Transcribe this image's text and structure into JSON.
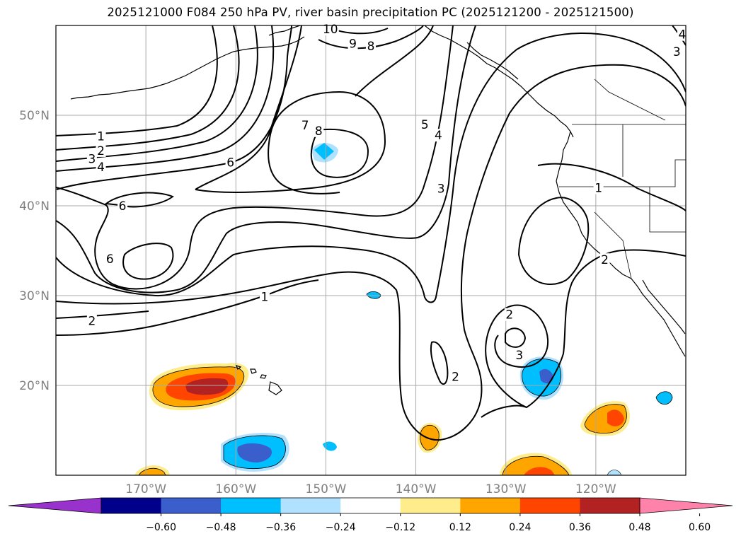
{
  "chart_data": {
    "type": "map-contour",
    "title": "2025121000 F084 250 hPa PV, river basin precipitation PC (2025121200 - 2025121500)",
    "lon_range": [
      -180,
      -110
    ],
    "lat_range": [
      10,
      60
    ],
    "gridlines": true,
    "lat_ticks": [
      {
        "value": 20,
        "label": "20°N"
      },
      {
        "value": 30,
        "label": "30°N"
      },
      {
        "value": 40,
        "label": "40°N"
      },
      {
        "value": 50,
        "label": "50°N"
      }
    ],
    "lon_ticks": [
      {
        "value": -170,
        "label": "170°W"
      },
      {
        "value": -160,
        "label": "160°W"
      },
      {
        "value": -150,
        "label": "150°W"
      },
      {
        "value": -140,
        "label": "140°W"
      },
      {
        "value": -130,
        "label": "130°W"
      },
      {
        "value": -120,
        "label": "120°W"
      }
    ],
    "pv_contour_labels": [
      {
        "text": "1",
        "lon": -175,
        "lat": 47.7
      },
      {
        "text": "2",
        "lon": -175,
        "lat": 46.1
      },
      {
        "text": "3",
        "lon": -176,
        "lat": 45.2
      },
      {
        "text": "4",
        "lon": -175,
        "lat": 44.3
      },
      {
        "text": "6",
        "lon": -160.6,
        "lat": 44.8
      },
      {
        "text": "6",
        "lon": -172.6,
        "lat": 40.0
      },
      {
        "text": "6",
        "lon": -174.0,
        "lat": 34.1
      },
      {
        "text": "7",
        "lon": -152.3,
        "lat": 48.9
      },
      {
        "text": "8",
        "lon": -150.8,
        "lat": 48.3
      },
      {
        "text": "10",
        "lon": -149.5,
        "lat": 59.6
      },
      {
        "text": "9",
        "lon": -147.0,
        "lat": 58.0
      },
      {
        "text": "8",
        "lon": -145.0,
        "lat": 57.7
      },
      {
        "text": "5",
        "lon": -139.0,
        "lat": 49.0
      },
      {
        "text": "4",
        "lon": -137.5,
        "lat": 47.8
      },
      {
        "text": "3",
        "lon": -137.2,
        "lat": 41.9
      },
      {
        "text": "1",
        "lon": -156.8,
        "lat": 29.9
      },
      {
        "text": "2",
        "lon": -176.0,
        "lat": 27.2
      },
      {
        "text": "1",
        "lon": -119.7,
        "lat": 42.0
      },
      {
        "text": "2",
        "lon": -119.0,
        "lat": 34.0
      },
      {
        "text": "2",
        "lon": -129.6,
        "lat": 27.9
      },
      {
        "text": "3",
        "lon": -128.5,
        "lat": 23.4
      },
      {
        "text": "2",
        "lon": -135.6,
        "lat": 21.0
      },
      {
        "text": "3",
        "lon": -111.0,
        "lat": 57.1
      },
      {
        "text": "4",
        "lon": -110.4,
        "lat": 59.0
      }
    ],
    "precip_colorbar": {
      "extend": "both",
      "levels": [
        -0.72,
        -0.6,
        -0.48,
        -0.36,
        -0.24,
        -0.12,
        0.12,
        0.24,
        0.36,
        0.48,
        0.6,
        0.72
      ],
      "tick_labels": [
        "−0.60",
        "−0.48",
        "−0.36",
        "−0.24",
        "−0.12",
        "0.12",
        "0.24",
        "0.36",
        "0.48",
        "0.60"
      ],
      "colors": [
        "#9932cc",
        "#00008b",
        "#3a5fcd",
        "#00bfff",
        "#b0e2ff",
        "#ffffff",
        "#ffec8b",
        "#ffa500",
        "#ff4500",
        "#b22222",
        "#ff82ab"
      ]
    },
    "precip_regions": [
      {
        "sign": "positive",
        "peak_value": 0.48,
        "center_lon": -164,
        "center_lat": 20
      },
      {
        "sign": "negative",
        "peak_value": -0.48,
        "center_lon": -158,
        "center_lat": 12.5
      },
      {
        "sign": "negative",
        "peak_value": -0.48,
        "center_lon": -125.5,
        "center_lat": 21
      },
      {
        "sign": "positive",
        "peak_value": 0.36,
        "center_lon": -117.8,
        "center_lat": 15.5
      },
      {
        "sign": "positive",
        "peak_value": 0.36,
        "center_lon": -126,
        "center_lat": 10.5
      },
      {
        "sign": "positive",
        "peak_value": 0.24,
        "center_lon": -139,
        "center_lat": 14
      },
      {
        "sign": "negative",
        "peak_value": -0.24,
        "center_lon": -150.3,
        "center_lat": 45.9
      },
      {
        "sign": "negative",
        "peak_value": -0.24,
        "center_lon": -111.9,
        "center_lat": 18.3
      }
    ]
  }
}
